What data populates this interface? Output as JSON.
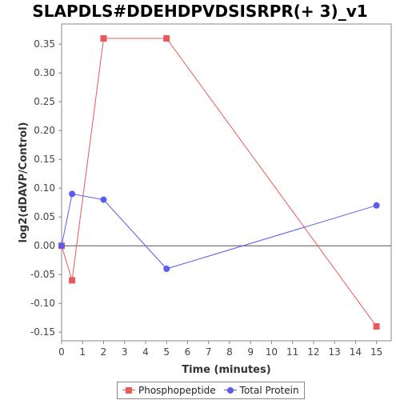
{
  "chart_data": {
    "type": "line",
    "title": "SLAPDLS#DDEHDPVDSISRPR(+ 3)_v1",
    "xlabel": "Time (minutes)",
    "ylabel": "log2(dDAVP/Control)",
    "xlim": [
      0,
      15.7
    ],
    "ylim": [
      -0.165,
      0.385
    ],
    "x_ticks": [
      0,
      1,
      2,
      3,
      4,
      5,
      6,
      7,
      8,
      9,
      10,
      11,
      12,
      13,
      14,
      15
    ],
    "y_ticks": [
      -0.15,
      -0.1,
      -0.05,
      0.0,
      0.05,
      0.1,
      0.15,
      0.2,
      0.25,
      0.3,
      0.35
    ],
    "y_tick_labels": [
      "-0.15",
      "-0.10",
      "-0.05",
      "0.00",
      "0.05",
      "0.10",
      "0.15",
      "0.20",
      "0.25",
      "0.30",
      "0.35"
    ],
    "grid": false,
    "legend_position": "bottom",
    "series": [
      {
        "name": "Phosphopeptide",
        "color": "#e8595b",
        "marker": "square",
        "x": [
          0,
          0.5,
          2,
          5,
          15
        ],
        "y": [
          0.0,
          -0.06,
          0.36,
          0.36,
          -0.14
        ]
      },
      {
        "name": "Total Protein",
        "color": "#5b5bef",
        "marker": "circle",
        "x": [
          0,
          0.5,
          2,
          5,
          15
        ],
        "y": [
          0.0,
          0.09,
          0.08,
          -0.04,
          0.07
        ]
      }
    ]
  }
}
